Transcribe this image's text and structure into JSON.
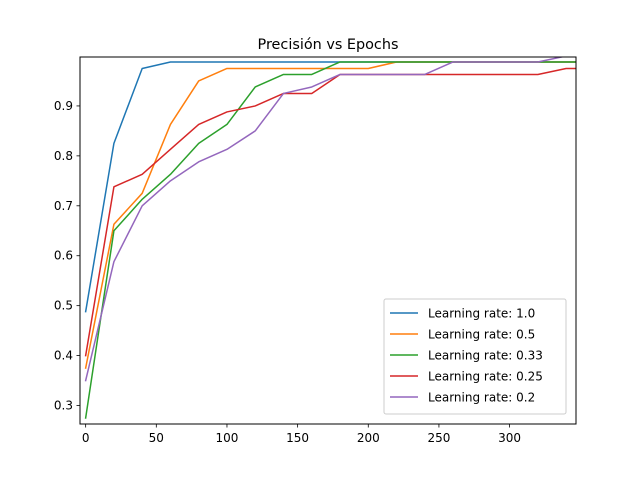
{
  "chart_data": {
    "type": "line",
    "title": "Precisión vs Epochs",
    "xlabel": "",
    "ylabel": "",
    "xlim": [
      -4,
      347
    ],
    "ylim": [
      0.263,
      0.998
    ],
    "x_ticks": [
      0,
      50,
      100,
      150,
      200,
      250,
      300
    ],
    "y_ticks": [
      0.3,
      0.4,
      0.5,
      0.6,
      0.7,
      0.8,
      0.9
    ],
    "grid": false,
    "legend_position": "lower right",
    "series": [
      {
        "name": "Learning rate: 1.0",
        "color": "#1f77b4",
        "x": [
          0,
          20,
          40,
          60,
          80,
          100,
          120,
          140,
          160,
          180,
          200,
          220,
          240,
          260,
          280,
          300,
          320,
          340,
          347
        ],
        "y": [
          0.488,
          0.825,
          0.975,
          0.988,
          0.988,
          0.988,
          0.988,
          0.988,
          0.988,
          0.988,
          0.988,
          0.988,
          0.988,
          0.988,
          0.988,
          0.988,
          0.988,
          0.988,
          0.988
        ]
      },
      {
        "name": "Learning rate: 0.5",
        "color": "#ff7f0e",
        "x": [
          0,
          20,
          40,
          60,
          80,
          100,
          120,
          140,
          160,
          180,
          200,
          220,
          240,
          260,
          280,
          300,
          320,
          340,
          347
        ],
        "y": [
          0.375,
          0.663,
          0.725,
          0.863,
          0.95,
          0.975,
          0.975,
          0.975,
          0.975,
          0.975,
          0.975,
          0.988,
          0.988,
          0.988,
          0.988,
          0.988,
          0.988,
          0.988,
          0.988
        ]
      },
      {
        "name": "Learning rate: 0.33",
        "color": "#2ca02c",
        "x": [
          0,
          20,
          40,
          60,
          80,
          100,
          120,
          140,
          160,
          180,
          200,
          220,
          240,
          260,
          280,
          300,
          320,
          340,
          347
        ],
        "y": [
          0.275,
          0.65,
          0.713,
          0.763,
          0.825,
          0.863,
          0.938,
          0.963,
          0.963,
          0.988,
          0.988,
          0.988,
          0.988,
          0.988,
          0.988,
          0.988,
          0.988,
          0.988,
          0.988
        ]
      },
      {
        "name": "Learning rate: 0.25",
        "color": "#d62728",
        "x": [
          0,
          20,
          40,
          60,
          80,
          100,
          120,
          140,
          160,
          180,
          200,
          220,
          240,
          260,
          280,
          300,
          320,
          340,
          347
        ],
        "y": [
          0.4,
          0.738,
          0.763,
          0.813,
          0.863,
          0.888,
          0.9,
          0.925,
          0.925,
          0.963,
          0.963,
          0.963,
          0.963,
          0.963,
          0.963,
          0.963,
          0.963,
          0.975,
          0.975
        ]
      },
      {
        "name": "Learning rate: 0.2",
        "color": "#9467bd",
        "x": [
          0,
          20,
          40,
          60,
          80,
          100,
          120,
          140,
          160,
          180,
          200,
          220,
          240,
          260,
          280,
          300,
          320,
          340,
          347
        ],
        "y": [
          0.35,
          0.588,
          0.7,
          0.75,
          0.788,
          0.813,
          0.85,
          0.925,
          0.938,
          0.963,
          0.963,
          0.963,
          0.963,
          0.988,
          0.988,
          0.988,
          0.988,
          1.0,
          1.0
        ]
      }
    ]
  }
}
